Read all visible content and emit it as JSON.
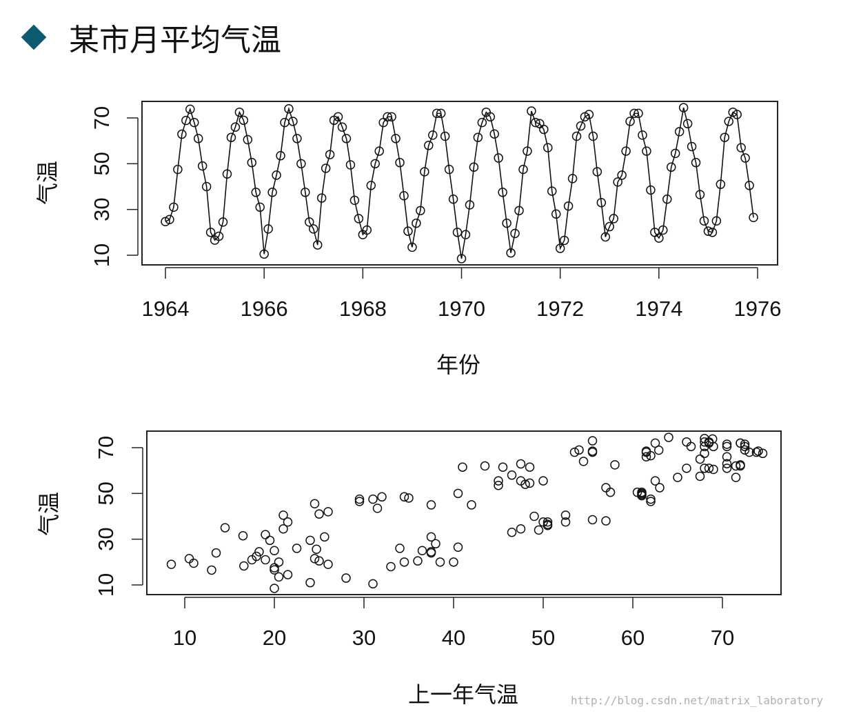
{
  "page": {
    "title": "某市月平均气温",
    "watermark": "http://blog.csdn.net/matrix_laboratory",
    "accent_color": "#0e5a6e"
  },
  "chart_data": [
    {
      "type": "line",
      "title": "",
      "xlabel": "年份",
      "ylabel": "气温",
      "xlim": [
        1964,
        1976
      ],
      "ylim": [
        8,
        77
      ],
      "xticks": [
        "1964",
        "1966",
        "1968",
        "1970",
        "1972",
        "1974",
        "1976"
      ],
      "yticks": [
        "10",
        "30",
        "50",
        "70"
      ],
      "start": 1964,
      "frequency": 12,
      "markers": "open-circle",
      "values": [
        24.7,
        25.6,
        31.0,
        47.5,
        62.9,
        68.9,
        73.8,
        68.0,
        61.0,
        49.0,
        40.0,
        20.0,
        16.6,
        18.3,
        24.5,
        45.5,
        61.5,
        66.0,
        72.5,
        69.0,
        60.5,
        50.5,
        37.5,
        31.0,
        10.5,
        21.5,
        37.5,
        45.0,
        53.5,
        68.0,
        74.0,
        68.5,
        61.0,
        50.0,
        37.5,
        24.5,
        21.5,
        14.5,
        35.0,
        48.0,
        54.0,
        69.0,
        70.5,
        66.0,
        61.0,
        49.5,
        34.0,
        26.0,
        19.0,
        21.0,
        40.5,
        50.0,
        55.5,
        68.0,
        70.5,
        70.5,
        61.0,
        50.5,
        36.0,
        20.5,
        13.5,
        24.0,
        29.5,
        46.5,
        58.0,
        62.5,
        72.0,
        72.0,
        62.0,
        47.5,
        34.5,
        20.0,
        8.5,
        19.0,
        32.0,
        48.5,
        61.5,
        68.0,
        72.5,
        70.5,
        63.0,
        52.5,
        37.5,
        24.0,
        11.0,
        19.5,
        29.5,
        47.5,
        55.5,
        73.0,
        68.0,
        67.5,
        65.0,
        57.0,
        38.0,
        28.0,
        13.0,
        16.5,
        31.5,
        43.5,
        62.0,
        66.5,
        70.5,
        71.5,
        62.0,
        46.5,
        33.0,
        18.0,
        22.5,
        26.0,
        42.0,
        45.0,
        55.5,
        68.5,
        72.0,
        72.0,
        62.5,
        55.5,
        38.5,
        20.0,
        17.5,
        21.0,
        34.5,
        48.5,
        54.5,
        64.0,
        74.5,
        67.5,
        57.5,
        50.5,
        36.5,
        25.0,
        20.5,
        20.0,
        25.0,
        41.0,
        61.5,
        68.5,
        72.5,
        71.5,
        57.0,
        52.5,
        40.5,
        26.5
      ]
    },
    {
      "type": "scatter",
      "title": "",
      "xlabel": "上一年气温",
      "ylabel": "气温",
      "xlim": [
        5.8,
        76.5
      ],
      "ylim": [
        6,
        77
      ],
      "xticks": [
        "10",
        "20",
        "30",
        "40",
        "50",
        "60",
        "70"
      ],
      "yticks": [
        "10",
        "30",
        "50",
        "70"
      ],
      "markers": "open-circle",
      "x": [
        24.7,
        25.6,
        31.0,
        47.5,
        62.9,
        68.9,
        73.8,
        68.0,
        61.0,
        49.0,
        40.0,
        20.0,
        16.6,
        18.3,
        24.5,
        45.5,
        61.5,
        66.0,
        72.5,
        69.0,
        60.5,
        50.5,
        37.5,
        31.0,
        10.5,
        21.5,
        37.5,
        45.0,
        53.5,
        68.0,
        74.0,
        68.5,
        61.0,
        50.0,
        37.5,
        24.5,
        21.5,
        14.5,
        35.0,
        48.0,
        54.0,
        69.0,
        70.5,
        66.0,
        61.0,
        49.5,
        34.0,
        26.0,
        19.0,
        21.0,
        40.5,
        50.0,
        55.5,
        68.0,
        70.5,
        70.5,
        61.0,
        50.5,
        36.0,
        20.5,
        13.5,
        24.0,
        29.5,
        46.5,
        58.0,
        62.5,
        72.0,
        72.0,
        62.0,
        47.5,
        34.5,
        20.0,
        8.5,
        19.0,
        32.0,
        48.5,
        61.5,
        68.0,
        72.5,
        70.5,
        63.0,
        52.5,
        37.5,
        24.0,
        11.0,
        19.5,
        29.5,
        47.5,
        55.5,
        73.0,
        68.0,
        67.5,
        65.0,
        57.0,
        38.0,
        28.0,
        13.0,
        16.5,
        31.5,
        43.5,
        62.0,
        66.5,
        70.5,
        71.5,
        62.0,
        46.5,
        33.0,
        18.0,
        22.5,
        26.0,
        42.0,
        45.0,
        55.5,
        68.5,
        72.0,
        72.0,
        62.5,
        55.5,
        38.5,
        20.0,
        17.5,
        21.0,
        34.5,
        48.5,
        54.5,
        64.0,
        74.5,
        67.5,
        57.5,
        50.5,
        36.5,
        25.0,
        20.5,
        20.0,
        25.0,
        41.0,
        61.5,
        68.5,
        72.5,
        71.5,
        57.0,
        52.5,
        40.5
      ],
      "y": [
        25.6,
        31.0,
        47.5,
        62.9,
        68.9,
        73.8,
        68.0,
        61.0,
        49.0,
        40.0,
        20.0,
        16.6,
        18.3,
        24.5,
        45.5,
        61.5,
        66.0,
        72.5,
        69.0,
        60.5,
        50.5,
        37.5,
        31.0,
        10.5,
        21.5,
        37.5,
        45.0,
        53.5,
        68.0,
        74.0,
        68.5,
        61.0,
        50.0,
        37.5,
        24.5,
        21.5,
        14.5,
        35.0,
        48.0,
        54.0,
        69.0,
        70.5,
        66.0,
        61.0,
        49.5,
        34.0,
        26.0,
        19.0,
        21.0,
        40.5,
        50.0,
        55.5,
        68.0,
        70.5,
        70.5,
        61.0,
        50.5,
        36.0,
        20.5,
        13.5,
        24.0,
        29.5,
        46.5,
        58.0,
        62.5,
        72.0,
        72.0,
        62.0,
        47.5,
        34.5,
        20.0,
        8.5,
        19.0,
        32.0,
        48.5,
        61.5,
        68.0,
        72.5,
        70.5,
        63.0,
        52.5,
        37.5,
        24.0,
        11.0,
        19.5,
        29.5,
        47.5,
        55.5,
        73.0,
        68.0,
        67.5,
        65.0,
        57.0,
        38.0,
        28.0,
        13.0,
        16.5,
        31.5,
        43.5,
        62.0,
        66.5,
        70.5,
        71.5,
        62.0,
        46.5,
        33.0,
        18.0,
        22.5,
        26.0,
        42.0,
        45.0,
        55.5,
        68.5,
        72.0,
        72.0,
        62.5,
        55.5,
        38.5,
        20.0,
        17.5,
        21.0,
        34.5,
        48.5,
        54.5,
        64.0,
        74.5,
        67.5,
        57.5,
        50.5,
        36.5,
        25.0,
        20.5,
        20.0,
        25.0,
        41.0,
        61.5,
        68.5,
        72.5,
        71.5,
        57.0,
        52.5,
        40.5,
        26.5
      ]
    }
  ]
}
